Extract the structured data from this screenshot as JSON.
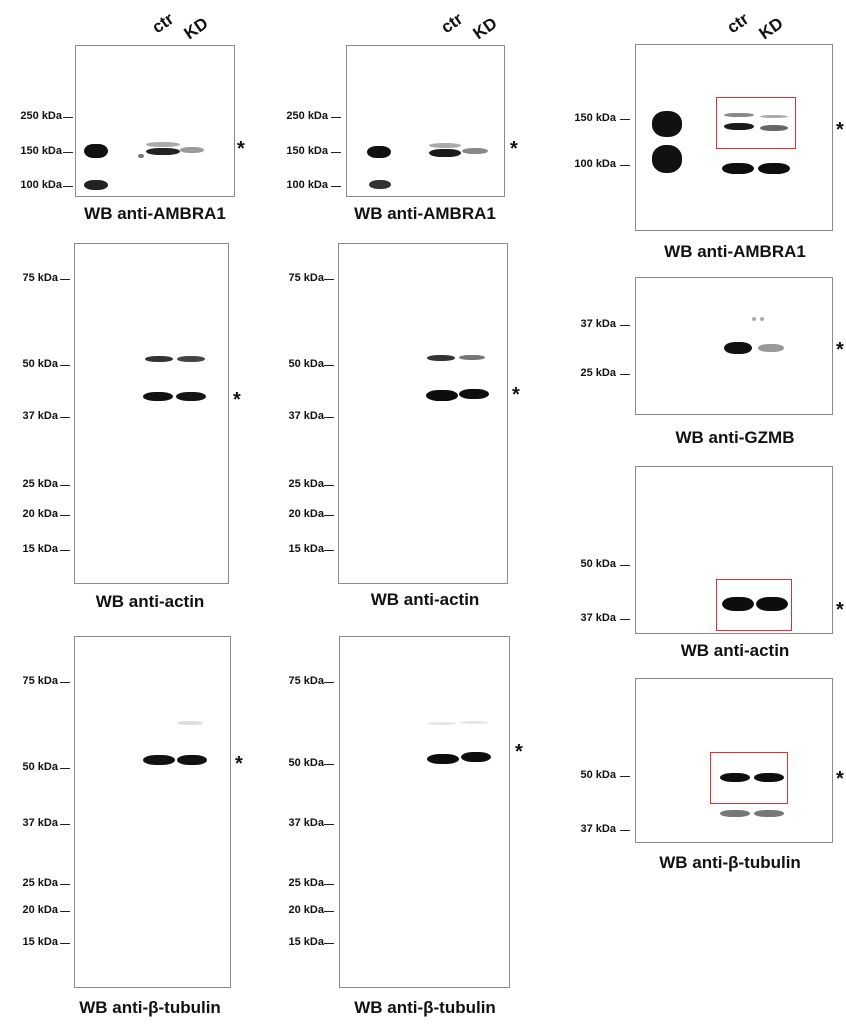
{
  "lane_labels": {
    "ctr": "ctr",
    "kd": "KD"
  },
  "mw": {
    "k250": "250 kDa",
    "k150": "150 kDa",
    "k100": "100 kDa",
    "k75": "75 kDa",
    "k50": "50 kDa",
    "k37": "37 kDa",
    "k25": "25 kDa",
    "k20": "20 kDa",
    "k15": "15 kDa"
  },
  "captions": {
    "ambra1": "WB anti-AMBRA1",
    "actin": "WB anti-actin",
    "tubulin": "WB anti-β-tubulin",
    "gzmb": "WB anti-GZMB"
  },
  "asterisk": "*",
  "colors": {
    "highlight_box": "#e03030",
    "band": "#111111",
    "panel_border": "#8a8a8a"
  }
}
